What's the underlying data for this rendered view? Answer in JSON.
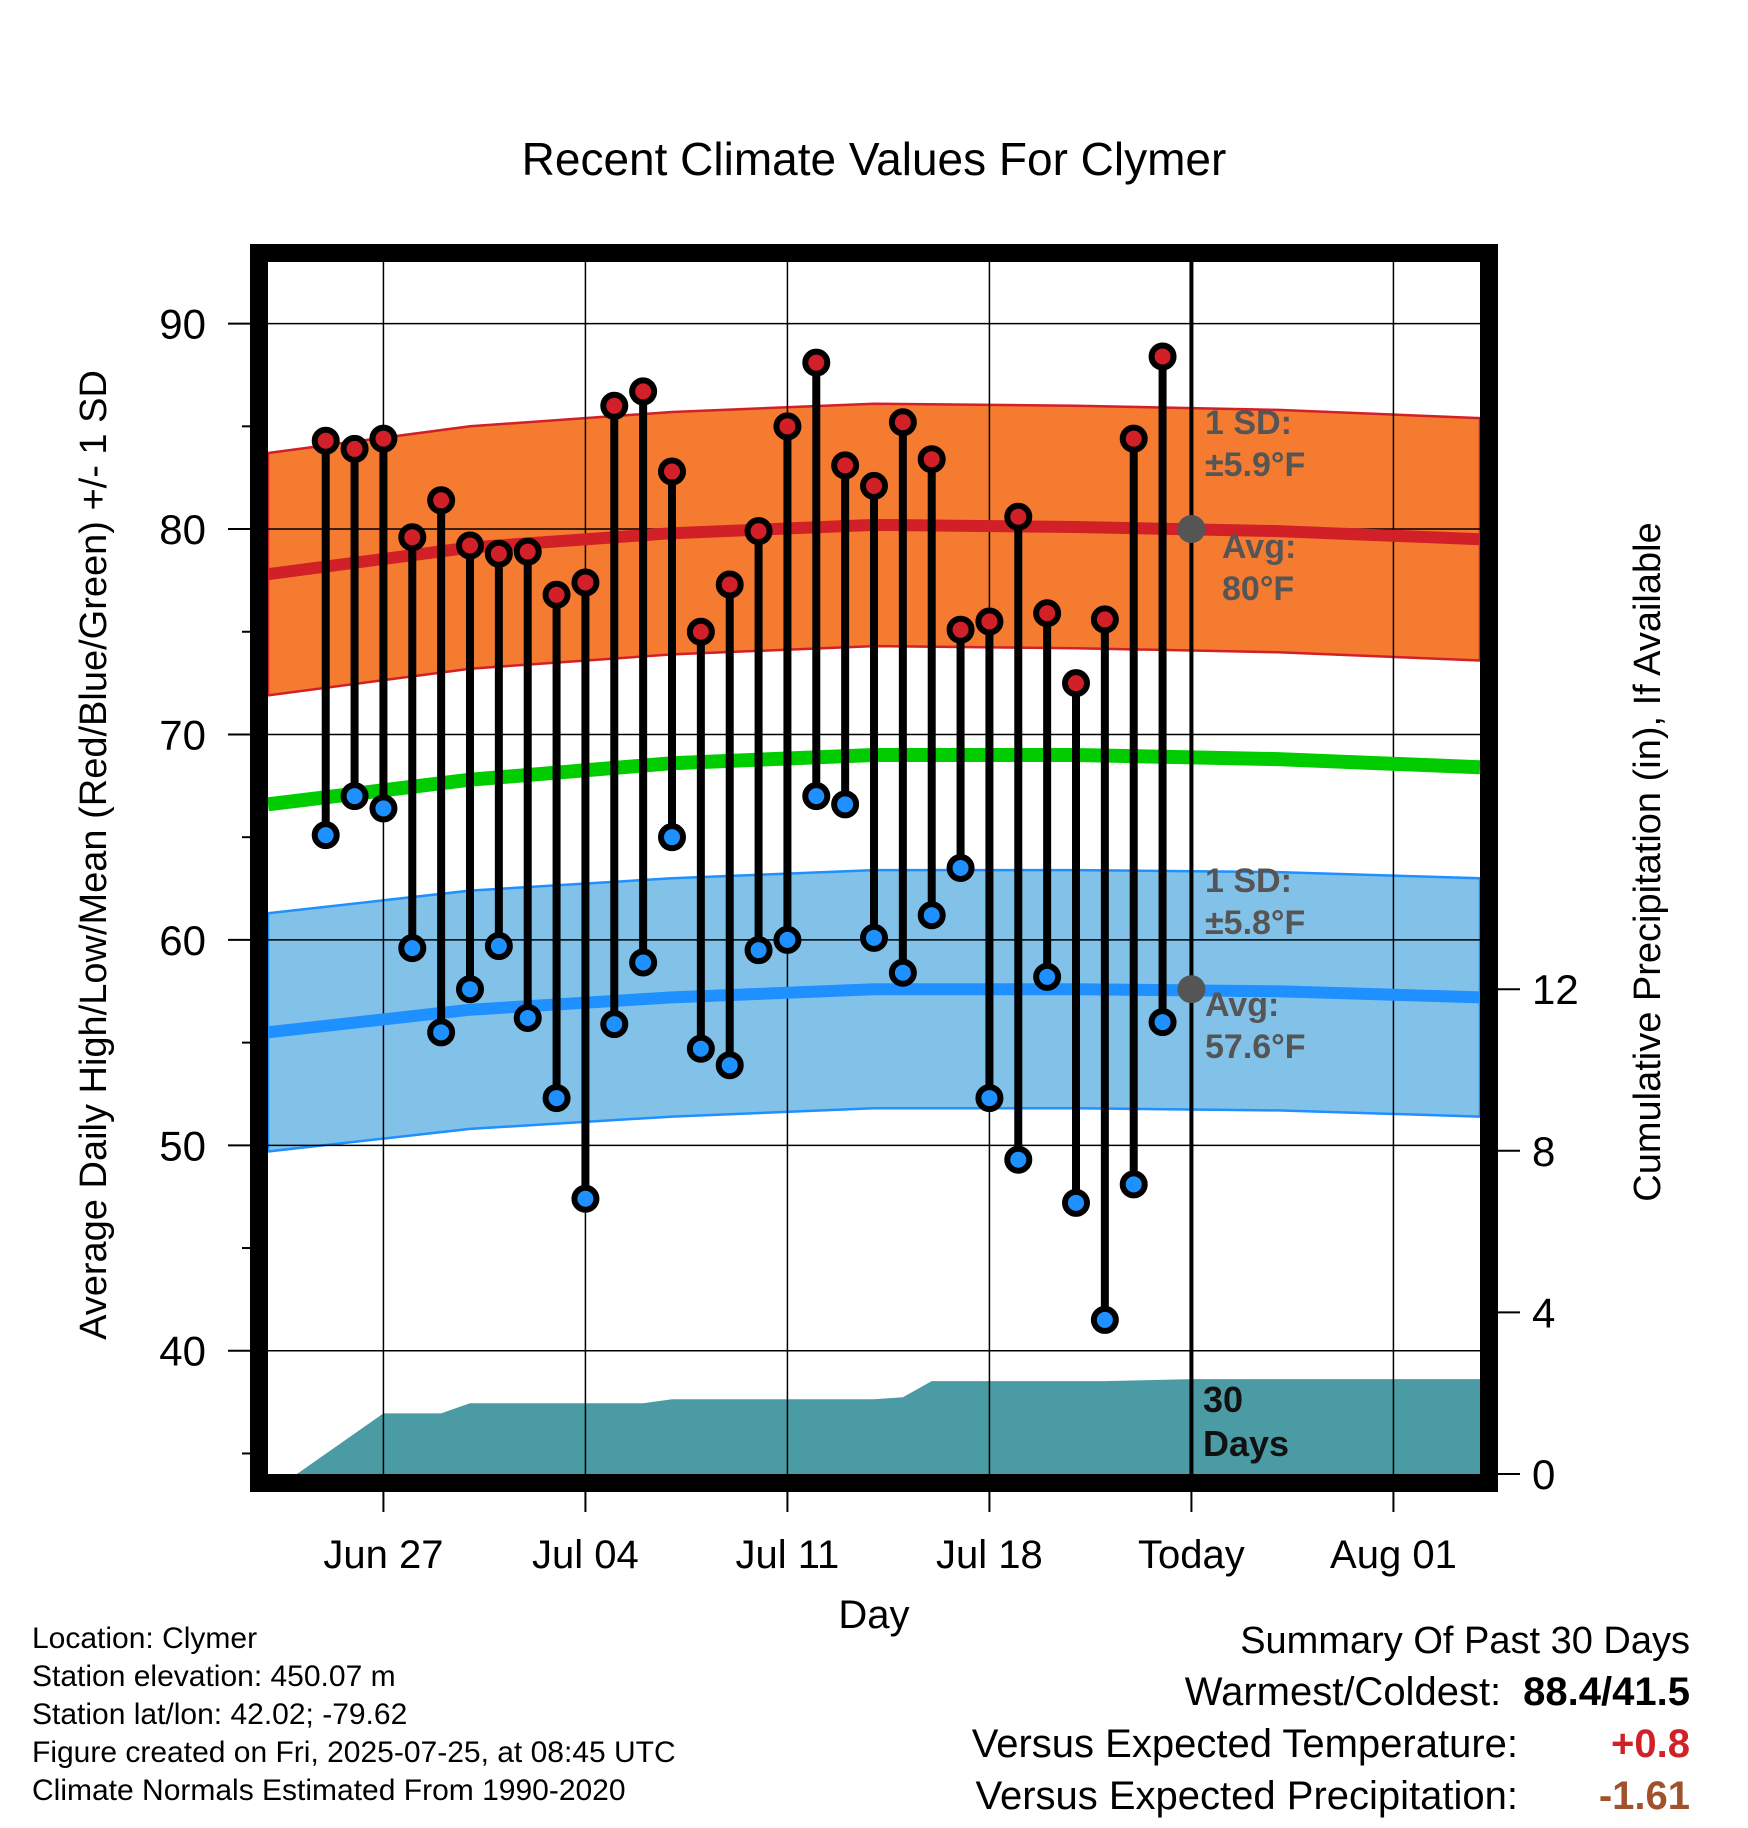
{
  "chart_data": {
    "type": "line",
    "title": "Recent Climate Values For Clymer",
    "xlabel": "Day",
    "ylabel_left": "Average Daily High/Low/Mean (Red/Blue/Green) +/- 1 SD",
    "ylabel_right": "Cumulative Precipitation (in), If Available",
    "ylim": [
      34,
      93
    ],
    "y2lim": [
      0,
      30
    ],
    "xlim": [
      "2025-06-23",
      "2025-08-04"
    ],
    "y_ticks": [
      40,
      50,
      60,
      70,
      80,
      90
    ],
    "y2_ticks": [
      0,
      4,
      8,
      12
    ],
    "x_ticks": [
      {
        "date": "2025-06-27",
        "label": "Jun 27"
      },
      {
        "date": "2025-07-04",
        "label": "Jul 04"
      },
      {
        "date": "2025-07-11",
        "label": "Jul 11"
      },
      {
        "date": "2025-07-18",
        "label": "Jul 18"
      },
      {
        "date": "2025-07-25",
        "label": "Today"
      },
      {
        "date": "2025-08-01",
        "label": "Aug 01"
      }
    ],
    "grid": true,
    "today": "2025-07-25",
    "dates": [
      "2025-06-25",
      "2025-06-26",
      "2025-06-27",
      "2025-06-28",
      "2025-06-29",
      "2025-06-30",
      "2025-07-01",
      "2025-07-02",
      "2025-07-03",
      "2025-07-04",
      "2025-07-05",
      "2025-07-06",
      "2025-07-07",
      "2025-07-08",
      "2025-07-09",
      "2025-07-10",
      "2025-07-11",
      "2025-07-12",
      "2025-07-13",
      "2025-07-14",
      "2025-07-15",
      "2025-07-16",
      "2025-07-17",
      "2025-07-18",
      "2025-07-19",
      "2025-07-20",
      "2025-07-21",
      "2025-07-22",
      "2025-07-23",
      "2025-07-24"
    ],
    "highs": [
      84.3,
      83.9,
      84.4,
      79.6,
      81.4,
      79.2,
      78.8,
      78.9,
      76.8,
      77.4,
      86.0,
      86.7,
      82.8,
      75.0,
      77.3,
      79.9,
      85.0,
      88.1,
      83.1,
      82.1,
      85.2,
      83.4,
      75.1,
      75.5,
      80.6,
      75.9,
      72.5,
      75.6,
      84.4,
      88.4
    ],
    "lows": [
      65.1,
      67.0,
      66.4,
      59.6,
      55.5,
      57.6,
      59.7,
      56.2,
      52.3,
      47.4,
      55.9,
      58.9,
      65.0,
      54.7,
      53.9,
      59.5,
      60.0,
      67.0,
      66.6,
      60.1,
      58.4,
      61.2,
      63.5,
      52.3,
      49.3,
      58.2,
      47.2,
      41.5,
      48.1,
      56.0
    ],
    "normals": {
      "dates": [
        "2025-06-23",
        "2025-06-30",
        "2025-07-07",
        "2025-07-14",
        "2025-07-21",
        "2025-07-28",
        "2025-08-04"
      ],
      "high_avg": [
        77.8,
        79.1,
        79.8,
        80.2,
        80.1,
        79.9,
        79.5
      ],
      "low_avg": [
        55.5,
        56.6,
        57.2,
        57.6,
        57.6,
        57.5,
        57.2
      ],
      "mean_avg": [
        66.6,
        67.8,
        68.6,
        69.0,
        69.0,
        68.8,
        68.4
      ],
      "high_sd": 5.9,
      "low_sd": 5.8
    },
    "precip": {
      "dates": [
        "2025-06-24",
        "2025-06-27",
        "2025-06-29",
        "2025-06-30",
        "2025-07-03",
        "2025-07-06",
        "2025-07-07",
        "2025-07-14",
        "2025-07-15",
        "2025-07-16",
        "2025-07-18",
        "2025-07-22",
        "2025-07-25",
        "2025-08-04"
      ],
      "values": [
        0,
        1.5,
        1.5,
        1.75,
        1.75,
        1.75,
        1.85,
        1.85,
        1.9,
        2.3,
        2.3,
        2.3,
        2.35,
        2.35
      ]
    },
    "annotations": {
      "high_sd_label": "1 SD:",
      "high_sd_value": "±5.9°F",
      "high_avg_label": "Avg:",
      "high_avg_value": "80°F",
      "low_sd_label": "1 SD:",
      "low_sd_value": "±5.8°F",
      "low_avg_label": "Avg:",
      "low_avg_value": "57.6°F",
      "period_line1": "30",
      "period_line2": "Days"
    },
    "colors": {
      "high": "#d12027",
      "low": "#1e90ff",
      "mean": "#00cc00",
      "high_band": "#f47b30",
      "low_band": "#83c2e8",
      "precip": "#4a9ba4",
      "annotation": "#555555"
    }
  },
  "info": {
    "location": "Location: Clymer",
    "elevation": "Station elevation: 450.07 m",
    "latlon": "Station lat/lon: 42.02; -79.62",
    "created": "Figure created on Fri, 2025-07-25, at 08:45 UTC",
    "normals": "Climate Normals Estimated From 1990-2020"
  },
  "summary": {
    "title": "Summary Of Past 30 Days",
    "warmest_label": "Warmest/Coldest:",
    "warmest_value": "88.4/41.5",
    "temp_label": "Versus Expected Temperature:",
    "temp_value": "+0.8",
    "temp_color": "#d12027",
    "precip_label": "Versus Expected Precipitation:",
    "precip_value": "-1.61",
    "precip_color": "#a0522d"
  }
}
